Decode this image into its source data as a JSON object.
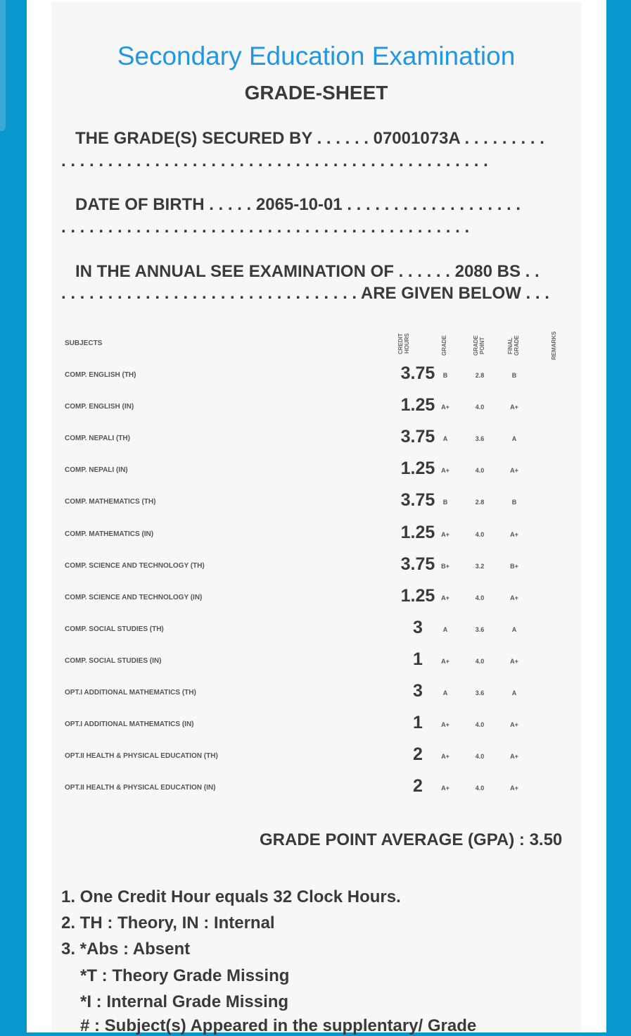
{
  "title": "Secondary Education Examination",
  "subtitle": "GRADE-SHEET",
  "secured_by": "THE GRADE(S) SECURED BY . . . . . . 07001073A . . . . . . . . .",
  "dob": "DATE OF BIRTH . . . . . 2065-10-01 . . . . . . . . . . . . . . . . . . .",
  "exam_line1": "IN THE ANNUAL SEE EXAMINATION OF . . . . . . 2080 BS . .",
  "exam_line2": ". . . . . . . . . . . . . . . . . . . . . . . . . . . . . . . . ARE GIVEN BELOW . . .",
  "dots1": ". . . . . . . . . . . . . . . . . . . . . . . . . . . . . . . . . . . . . . . . . . . . . .",
  "dots2": ". . . . . . . . . . . . . . . . . . . . . . . . . . . . . . . . . . . . . . . . . . . .",
  "headers": {
    "subjects": "SUBJECTS",
    "credit_hours": "CREDIT HOURS",
    "grade": "GRADE",
    "grade_point": "GRADE POINT",
    "final_grade": "FINAL GRADE",
    "remarks": "REMARKS"
  },
  "rows": [
    {
      "subject": "COMP. ENGLISH (TH)",
      "ch": "3.75",
      "grade": "B",
      "gp": "2.8",
      "final": "B"
    },
    {
      "subject": "COMP. ENGLISH (IN)",
      "ch": "1.25",
      "grade": "A+",
      "gp": "4.0",
      "final": "A+"
    },
    {
      "subject": "COMP. NEPALI (TH)",
      "ch": "3.75",
      "grade": "A",
      "gp": "3.6",
      "final": "A"
    },
    {
      "subject": "COMP. NEPALI (IN)",
      "ch": "1.25",
      "grade": "A+",
      "gp": "4.0",
      "final": "A+"
    },
    {
      "subject": "COMP. MATHEMATICS (TH)",
      "ch": "3.75",
      "grade": "B",
      "gp": "2.8",
      "final": "B"
    },
    {
      "subject": "COMP. MATHEMATICS (IN)",
      "ch": "1.25",
      "grade": "A+",
      "gp": "4.0",
      "final": "A+"
    },
    {
      "subject": "COMP. SCIENCE AND TECHNOLOGY (TH)",
      "ch": "3.75",
      "grade": "B+",
      "gp": "3.2",
      "final": "B+"
    },
    {
      "subject": "COMP. SCIENCE AND TECHNOLOGY (IN)",
      "ch": "1.25",
      "grade": "A+",
      "gp": "4.0",
      "final": "A+"
    },
    {
      "subject": "COMP. SOCIAL STUDIES (TH)",
      "ch": "3",
      "grade": "A",
      "gp": "3.6",
      "final": "A"
    },
    {
      "subject": "COMP. SOCIAL STUDIES (IN)",
      "ch": "1",
      "grade": "A+",
      "gp": "4.0",
      "final": "A+"
    },
    {
      "subject": "OPT.I ADDITIONAL MATHEMATICS (TH)",
      "ch": "3",
      "grade": "A",
      "gp": "3.6",
      "final": "A"
    },
    {
      "subject": "OPT.I ADDITIONAL MATHEMATICS (IN)",
      "ch": "1",
      "grade": "A+",
      "gp": "4.0",
      "final": "A+"
    },
    {
      "subject": "OPT.II HEALTH & PHYSICAL EDUCATION (TH)",
      "ch": "2",
      "grade": "A+",
      "gp": "4.0",
      "final": "A+"
    },
    {
      "subject": "OPT.II HEALTH & PHYSICAL EDUCATION (IN)",
      "ch": "2",
      "grade": "A+",
      "gp": "4.0",
      "final": "A+"
    }
  ],
  "gpa": "GRADE POINT AVERAGE (GPA) : 3.50",
  "notes": [
    "1. One Credit Hour equals 32 Clock Hours.",
    "2. TH : Theory, IN : Internal",
    "3. *Abs : Absent",
    "*T : Theory Grade Missing",
    "*I : Internal Grade Missing",
    "# : Subject(s) Appeared in the supplentary/ Grade"
  ]
}
